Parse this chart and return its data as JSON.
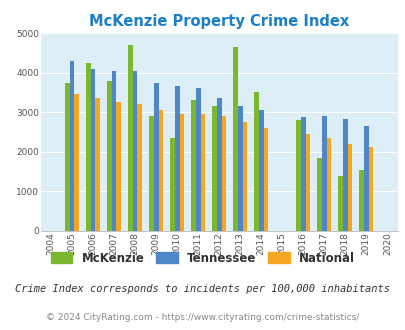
{
  "title": "McKenzie Property Crime Index",
  "years": [
    2004,
    2005,
    2006,
    2007,
    2008,
    2009,
    2010,
    2011,
    2012,
    2013,
    2014,
    2015,
    2016,
    2017,
    2018,
    2019,
    2020
  ],
  "mckenzie": [
    null,
    3750,
    4250,
    3800,
    4700,
    2900,
    2350,
    3300,
    3150,
    4650,
    3500,
    null,
    2800,
    1850,
    1400,
    1550,
    null
  ],
  "tennessee": [
    null,
    4300,
    4100,
    4050,
    4050,
    3750,
    3650,
    3600,
    3350,
    3150,
    3050,
    null,
    2875,
    2900,
    2825,
    2650,
    null
  ],
  "national": [
    null,
    3450,
    3350,
    3250,
    3200,
    3050,
    2950,
    2950,
    2900,
    2750,
    2600,
    null,
    2450,
    2350,
    2200,
    2125,
    null
  ],
  "mckenzie_color": "#7cb82f",
  "tennessee_color": "#4f86c6",
  "national_color": "#f5a623",
  "bg_color": "#ddeef6",
  "ylim": [
    0,
    5000
  ],
  "yticks": [
    0,
    1000,
    2000,
    3000,
    4000,
    5000
  ],
  "subtitle": "Crime Index corresponds to incidents per 100,000 inhabitants",
  "footer": "© 2024 CityRating.com - https://www.cityrating.com/crime-statistics/",
  "legend_labels": [
    "McKenzie",
    "Tennessee",
    "National"
  ],
  "bar_width": 0.22,
  "xlim": [
    2003.5,
    2020.5
  ]
}
